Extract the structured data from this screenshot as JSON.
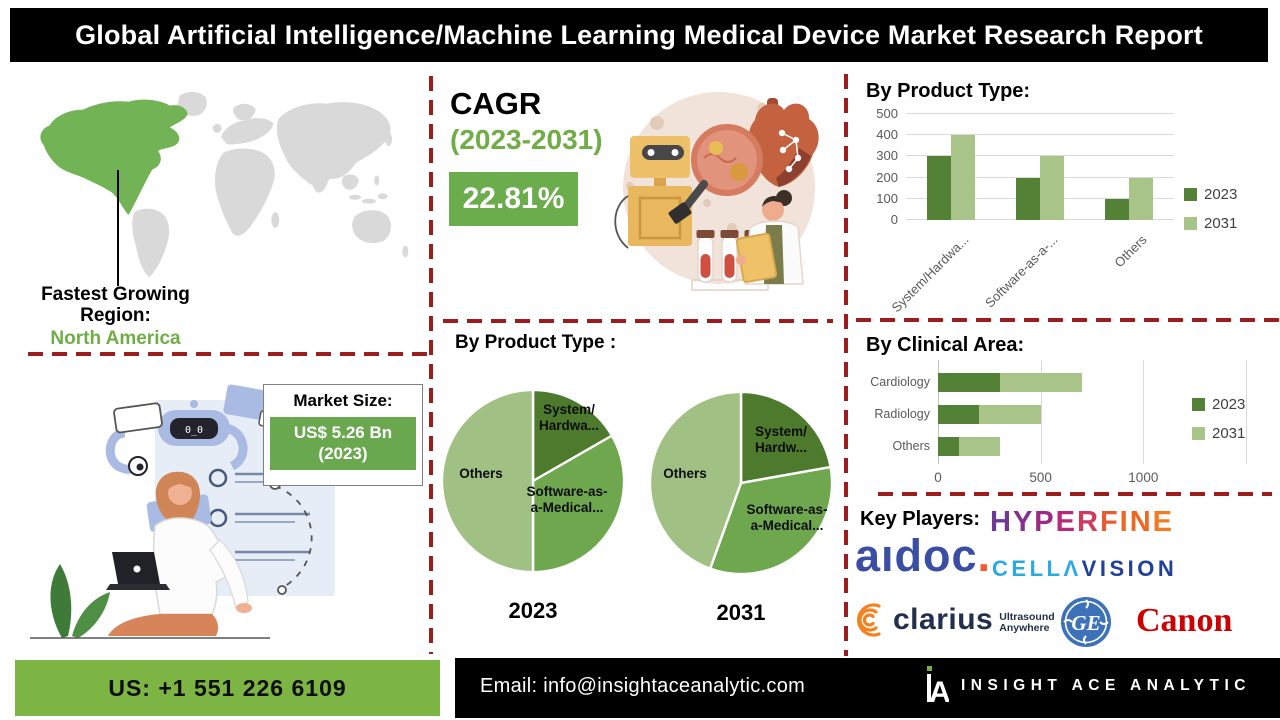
{
  "header": {
    "title": "Global Artificial Intelligence/Machine Learning Medical Device Market Research Report"
  },
  "left_column": {
    "fastest_growing": {
      "line1": "Fastest Growing",
      "line2": "Region:",
      "region": "North America"
    },
    "market_size": {
      "label": "Market Size:",
      "value": "US$ 5.26 Bn",
      "year": "(2023)"
    },
    "robot_face": "0_0"
  },
  "middle_column": {
    "cagr": {
      "label": "CAGR",
      "period": "(2023-2031)",
      "value": "22.81%"
    },
    "pie_section": {
      "title": "By Product Type :",
      "pie_2023": {
        "labels": {
          "system_l1": "System/",
          "system_l2": "Hardwa...",
          "software_l1": "Software-as-",
          "software_l2": "a-Medical...",
          "others": "Others"
        }
      },
      "pie_2031": {
        "labels": {
          "system_l1": "System/",
          "system_l2": "Hardw...",
          "software_l1": "Software-as-",
          "software_l2": "a-Medical...",
          "others": "Others"
        }
      }
    }
  },
  "right_column": {
    "key_players": {
      "label": "Key Players:",
      "hyperfine": {
        "text": "HYPERFINE",
        "letter_colors": [
          "#6f3894",
          "#83308e",
          "#9b2a84",
          "#b72878",
          "#d13a5e",
          "#e85c33",
          "#f06724",
          "#f06724",
          "#f47a20"
        ]
      },
      "aidoc": {
        "text": "aıdoc",
        "dot": ".",
        "color": "#3a4fa3",
        "dot_color": "#f15a29"
      },
      "cellavision": {
        "text": "CELLΛVISION",
        "cyan_count": 5,
        "cyan": "#29abe2",
        "navy": "#21409a"
      },
      "clarius": {
        "text": "clarius",
        "sub1": "Ultrasound",
        "sub2": "Anywhere",
        "color": "#22304e",
        "icon_color": "#f58220"
      },
      "ge": {
        "text": "GE",
        "color": "#3e72b8"
      },
      "canon": {
        "text": "Canon",
        "color": "#cc0000"
      }
    }
  },
  "footer": {
    "phone": "US: +1 551 226 6109",
    "email": "Email: info@insightaceanalytic.com",
    "brand": "INSIGHT ACE ANALYTIC",
    "phone_bg": "#7db544"
  },
  "chart_data": [
    {
      "id": "by_product_type_bar",
      "type": "bar",
      "title": "By Product Type:",
      "categories": [
        "System/Hardwa...",
        "Software-as-a-...",
        "Others"
      ],
      "series": [
        {
          "name": "2023",
          "color": "#538135",
          "values": [
            300,
            200,
            100
          ]
        },
        {
          "name": "2031",
          "color": "#a9c488",
          "values": [
            400,
            300,
            200
          ]
        }
      ],
      "ylim": [
        0,
        500
      ],
      "ytick_step": 100,
      "grid": true,
      "legend_position": "right"
    },
    {
      "id": "by_product_type_pie_2023",
      "type": "pie",
      "year": "2023",
      "labels": [
        "System/Hardwa...",
        "Software-as-a-Medical...",
        "Others"
      ],
      "values_pct": [
        16.7,
        33.3,
        50.0
      ],
      "colors": [
        "#4d7a2c",
        "#6fa74e",
        "#a0c183"
      ]
    },
    {
      "id": "by_product_type_pie_2031",
      "type": "pie",
      "year": "2031",
      "labels": [
        "System/Hardw...",
        "Software-as-a-Medical...",
        "Others"
      ],
      "values_pct": [
        22.2,
        33.3,
        44.5
      ],
      "colors": [
        "#4d7a2c",
        "#6fa74e",
        "#a0c183"
      ]
    },
    {
      "id": "by_clinical_area_stacked_bar",
      "type": "bar",
      "orientation": "horizontal",
      "stacked": true,
      "title": "By Clinical Area:",
      "categories": [
        "Cardiology",
        "Radiology",
        "Others"
      ],
      "series": [
        {
          "name": "2023",
          "color": "#538135",
          "values": [
            300,
            200,
            100
          ]
        },
        {
          "name": "2031",
          "color": "#a9c488",
          "values": [
            400,
            300,
            200
          ]
        }
      ],
      "xlim": [
        0,
        1500
      ],
      "xticks": [
        0,
        500,
        1000
      ],
      "grid": true,
      "legend_position": "right"
    }
  ]
}
